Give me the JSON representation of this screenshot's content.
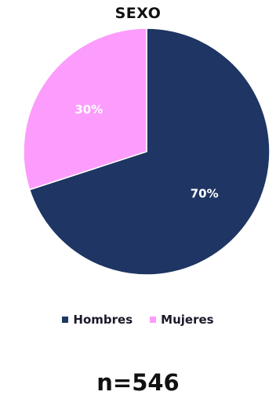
{
  "chart_data": {
    "type": "pie",
    "title": "SEXO",
    "categories": [
      "Hombres",
      "Mujeres"
    ],
    "values": [
      70,
      30
    ],
    "data_labels": [
      "70%",
      "30%"
    ],
    "colors": [
      "#1f3563",
      "#fc9cfc"
    ],
    "legend_position": "bottom",
    "annotation": "n=546"
  }
}
